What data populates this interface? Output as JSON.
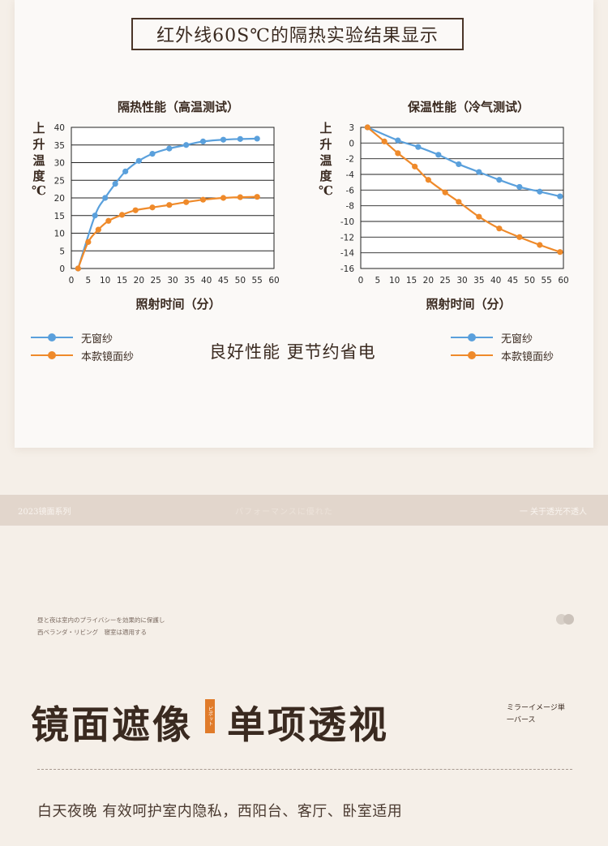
{
  "header": {
    "title": "红外线60S℃的隔热实验结果显示"
  },
  "chart_data": [
    {
      "type": "line",
      "title": "隔热性能（高温测试）",
      "ylabel": "上升温度℃",
      "xlabel": "照射时间（分）",
      "x_ticks": [
        0,
        5,
        10,
        15,
        20,
        25,
        30,
        35,
        40,
        45,
        50,
        55,
        60
      ],
      "y_ticks": [
        0,
        5,
        10,
        15,
        20,
        25,
        30,
        35,
        40
      ],
      "xlim": [
        0,
        60
      ],
      "ylim": [
        0,
        40
      ],
      "grid": true,
      "series": [
        {
          "name": "无窗纱",
          "color": "#5aa0dc",
          "x": [
            2,
            7,
            10,
            13,
            16,
            20,
            24,
            29,
            34,
            39,
            45,
            50,
            55
          ],
          "y": [
            0,
            15,
            20,
            24,
            27.5,
            30.5,
            32.5,
            34,
            35,
            36,
            36.5,
            36.7,
            36.8
          ]
        },
        {
          "name": "本款镜面纱",
          "color": "#ef8a2a",
          "x": [
            2,
            5,
            8,
            11,
            15,
            19,
            24,
            29,
            34,
            39,
            45,
            50,
            55
          ],
          "y": [
            0,
            7.5,
            11,
            13.5,
            15.2,
            16.5,
            17.3,
            18,
            18.8,
            19.5,
            20,
            20.2,
            20.3
          ]
        }
      ]
    },
    {
      "type": "line",
      "title": "保温性能（冷气测试）",
      "ylabel": "上升温度℃",
      "xlabel": "照射时间（分）",
      "x_ticks": [
        0,
        5,
        10,
        15,
        20,
        25,
        30,
        35,
        40,
        45,
        50,
        55,
        60
      ],
      "y_ticks": [
        3,
        0,
        -2,
        -4,
        -6,
        -8,
        -10,
        -12,
        -14,
        -16
      ],
      "xlim": [
        0,
        60
      ],
      "ylim": [
        -16,
        3
      ],
      "grid": true,
      "series": [
        {
          "name": "无窗纱",
          "color": "#5aa0dc",
          "x": [
            2,
            11,
            17,
            23,
            29,
            35,
            41,
            47,
            53,
            59
          ],
          "y": [
            3,
            0.5,
            -0.5,
            -1.5,
            -2.7,
            -3.7,
            -4.7,
            -5.6,
            -6.2,
            -6.8
          ]
        },
        {
          "name": "本款镜面纱",
          "color": "#ef8a2a",
          "x": [
            2,
            7,
            11,
            16,
            20,
            25,
            29,
            35,
            41,
            47,
            53,
            59
          ],
          "y": [
            3,
            0.3,
            -1.3,
            -3,
            -4.7,
            -6.3,
            -7.5,
            -9.4,
            -10.9,
            -12,
            -13,
            -13.9
          ]
        }
      ]
    }
  ],
  "legend_left": [
    {
      "label": "无窗纱",
      "color": "#5aa0dc"
    },
    {
      "label": "本款镜面纱",
      "color": "#ef8a2a"
    }
  ],
  "legend_right": [
    {
      "label": "无窗纱",
      "color": "#5aa0dc"
    },
    {
      "label": "本款镜面纱",
      "color": "#ef8a2a"
    }
  ],
  "tagline": "良好性能 更节约省电",
  "band": {
    "left": "2023镜面系列",
    "center": "パフォーマンスに優れた",
    "right": "一 关于透光不透人"
  },
  "jp_small": {
    "line1": "昼と夜は室内のプライバシーを効果的に保護し",
    "line2": "西ベランダ・リビング　寝室は適用する"
  },
  "headline": {
    "part1": "镜面遮像",
    "tag": "ピボット",
    "part2": "单项透视"
  },
  "jp_right": {
    "line1": "ミラーイメージ単",
    "line2": "一バース"
  },
  "subline": "白天夜晚  有效呵护室内隐私，西阳台、客厅、卧室适用"
}
